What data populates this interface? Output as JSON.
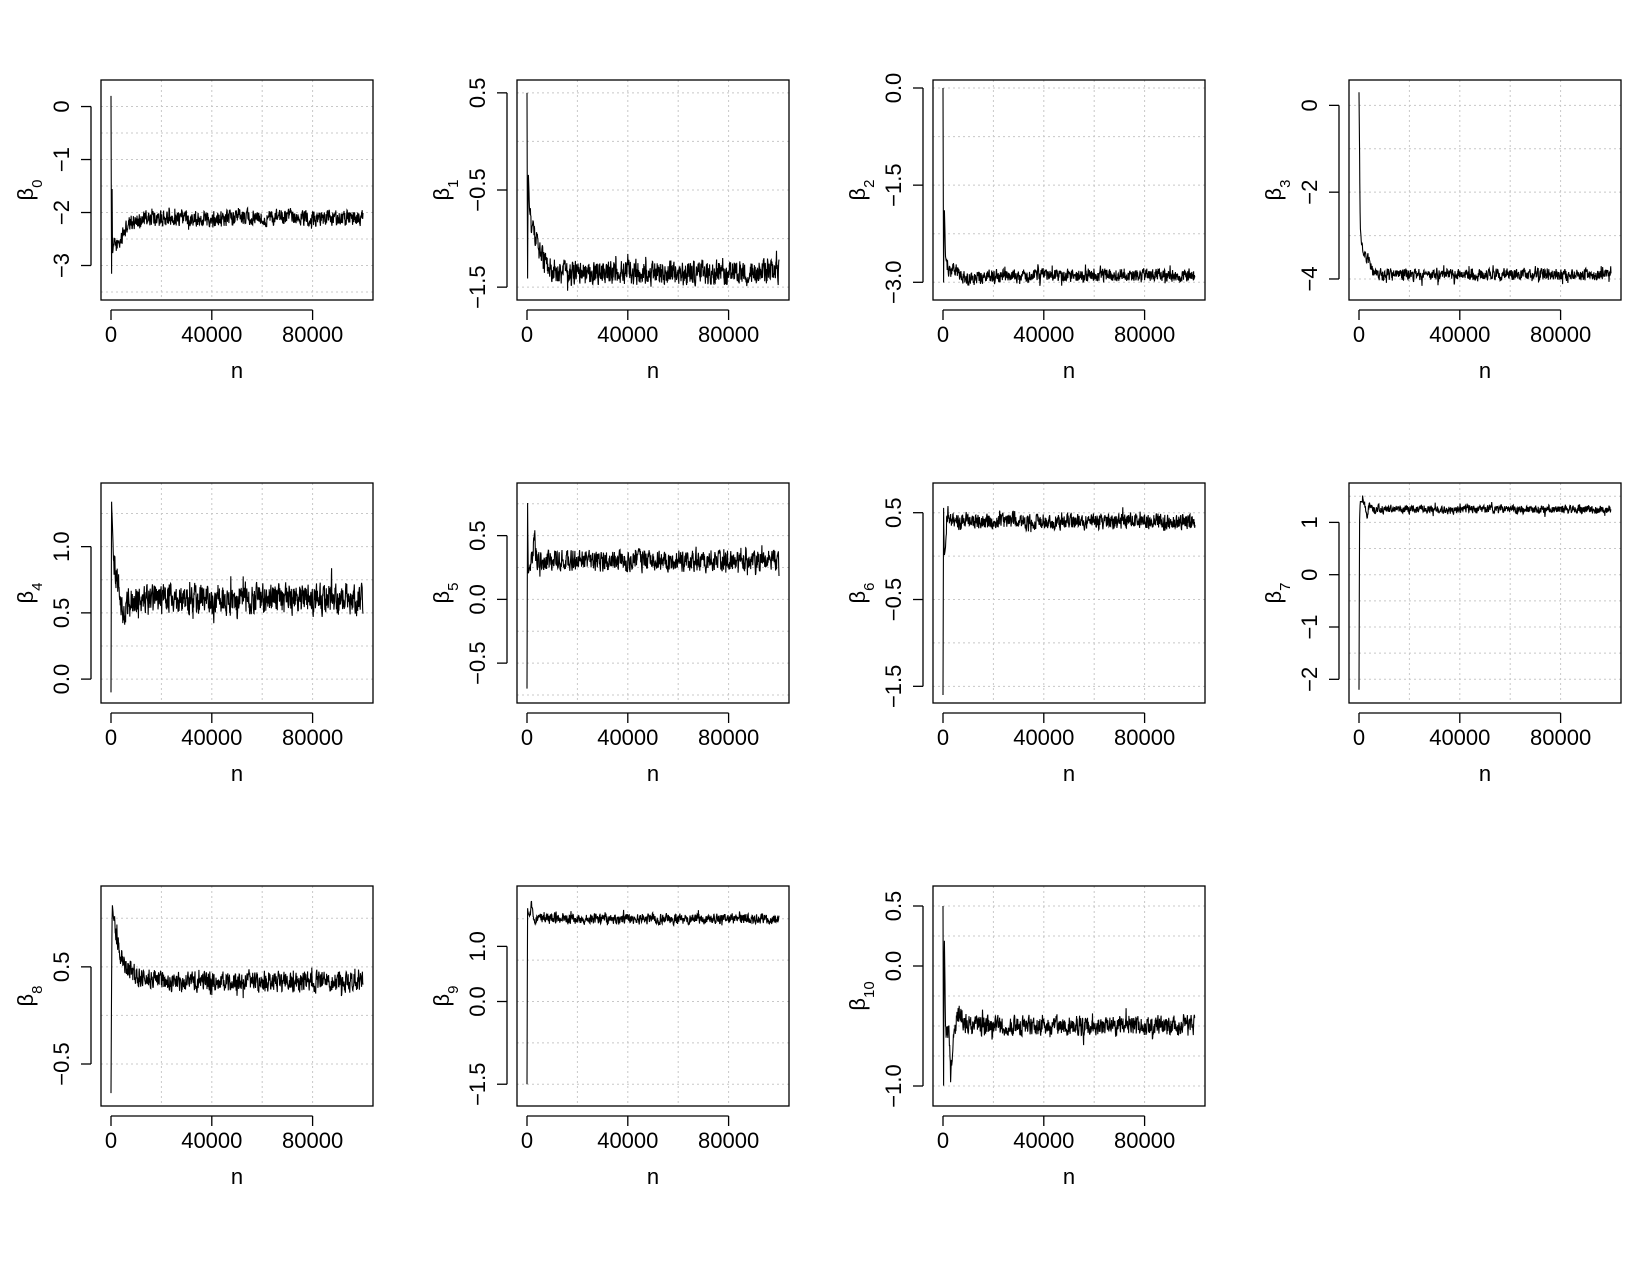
{
  "chart_data": [
    {
      "type": "line",
      "title": "",
      "xlabel": "n",
      "ylabel": "β",
      "ylabel_sub": "0",
      "xlim": [
        0,
        100000
      ],
      "ylim": [
        -3.5,
        0.35
      ],
      "xticks": [
        0,
        40000,
        80000
      ],
      "yticks": [
        0,
        -1,
        -2,
        -3
      ],
      "ytick_labels": [
        "0",
        "−1",
        "−2",
        "−3"
      ],
      "grid": true,
      "series": [
        {
          "x": [
            0,
            200,
            400,
            600,
            1000,
            1500,
            2000,
            3000,
            4000,
            5000,
            6000,
            7000,
            8000,
            10000,
            15000,
            20000,
            40000,
            60000,
            80000,
            100000
          ],
          "y": [
            0.2,
            -3.4,
            -1.2,
            -2.8,
            -2.6,
            -2.6,
            -2.6,
            -2.6,
            -2.5,
            -2.4,
            -2.3,
            -2.25,
            -2.2,
            -2.15,
            -2.12,
            -2.12,
            -2.1,
            -2.1,
            -2.1,
            -2.1
          ],
          "noise": 0.13
        }
      ]
    },
    {
      "type": "line",
      "title": "",
      "xlabel": "n",
      "ylabel": "β",
      "ylabel_sub": "1",
      "xlim": [
        0,
        100000
      ],
      "ylim": [
        -1.55,
        0.55
      ],
      "xticks": [
        0,
        40000,
        80000
      ],
      "yticks": [
        0.5,
        -0.5,
        -1.5
      ],
      "ytick_labels": [
        "0.5",
        "−0.5",
        "−1.5"
      ],
      "grid": true,
      "series": [
        {
          "x": [
            0,
            200,
            500,
            1000,
            2000,
            3000,
            4000,
            5000,
            6000,
            8000,
            10000,
            15000,
            20000,
            40000,
            60000,
            80000,
            100000
          ],
          "y": [
            0.5,
            -1.5,
            -0.3,
            -0.7,
            -0.95,
            -0.95,
            -1.0,
            -1.15,
            -1.2,
            -1.3,
            -1.33,
            -1.35,
            -1.35,
            -1.35,
            -1.35,
            -1.35,
            -1.35
          ],
          "noise": 0.11
        }
      ]
    },
    {
      "type": "line",
      "title": "",
      "xlabel": "n",
      "ylabel": "β",
      "ylabel_sub": "2",
      "xlim": [
        0,
        100000
      ],
      "ylim": [
        -3.15,
        0.0
      ],
      "xticks": [
        0,
        40000,
        80000
      ],
      "yticks": [
        0,
        -1.5,
        -3.0
      ],
      "ytick_labels": [
        "0.0",
        "−1.5",
        "−3.0"
      ],
      "grid": true,
      "series": [
        {
          "x": [
            0,
            200,
            500,
            1000,
            2000,
            3000,
            4000,
            6000,
            8000,
            10000,
            20000,
            40000,
            60000,
            80000,
            100000
          ],
          "y": [
            0.0,
            -3.1,
            -1.8,
            -2.6,
            -2.85,
            -2.85,
            -2.75,
            -2.85,
            -2.9,
            -2.95,
            -2.9,
            -2.9,
            -2.9,
            -2.9,
            -2.9
          ],
          "noise": 0.09
        }
      ]
    },
    {
      "type": "line",
      "title": "",
      "xlabel": "n",
      "ylabel": "β",
      "ylabel_sub": "3",
      "xlim": [
        0,
        100000
      ],
      "ylim": [
        -4.3,
        0.4
      ],
      "xticks": [
        0,
        40000,
        80000
      ],
      "yticks": [
        0,
        -2,
        -4
      ],
      "ytick_labels": [
        "0",
        "−2",
        "−4"
      ],
      "grid": true,
      "series": [
        {
          "x": [
            0,
            200,
            500,
            1000,
            2000,
            3000,
            4000,
            5000,
            6000,
            8000,
            10000,
            20000,
            40000,
            60000,
            80000,
            100000
          ],
          "y": [
            0.3,
            -1.0,
            -2.8,
            -3.2,
            -3.4,
            -3.5,
            -3.6,
            -3.8,
            -3.85,
            -3.9,
            -3.9,
            -3.9,
            -3.9,
            -3.9,
            -3.9,
            -3.9
          ],
          "noise": 0.12
        }
      ]
    },
    {
      "type": "line",
      "title": "",
      "xlabel": "n",
      "ylabel": "β",
      "ylabel_sub": "4",
      "xlim": [
        0,
        100000
      ],
      "ylim": [
        -0.12,
        1.42
      ],
      "xticks": [
        0,
        40000,
        80000
      ],
      "yticks": [
        0.0,
        0.5,
        1.0
      ],
      "ytick_labels": [
        "0.0",
        "0.5",
        "1.0"
      ],
      "grid": true,
      "series": [
        {
          "x": [
            0,
            200,
            500,
            1000,
            2000,
            3000,
            4000,
            5000,
            6000,
            8000,
            10000,
            20000,
            40000,
            60000,
            80000,
            100000
          ],
          "y": [
            -0.1,
            1.35,
            1.2,
            0.9,
            0.8,
            0.7,
            0.55,
            0.5,
            0.55,
            0.58,
            0.6,
            0.6,
            0.6,
            0.6,
            0.6,
            0.6
          ],
          "noise": 0.1
        }
      ]
    },
    {
      "type": "line",
      "title": "",
      "xlabel": "n",
      "ylabel": "β",
      "ylabel_sub": "5",
      "xlim": [
        0,
        100000
      ],
      "ylim": [
        -0.75,
        0.85
      ],
      "xticks": [
        0,
        40000,
        80000
      ],
      "yticks": [
        -0.5,
        0.0,
        0.5
      ],
      "ytick_labels": [
        "−0.5",
        "0.0",
        "0.5"
      ],
      "grid": true,
      "series": [
        {
          "x": [
            0,
            200,
            500,
            1000,
            2000,
            3000,
            4000,
            6000,
            10000,
            20000,
            40000,
            60000,
            80000,
            100000
          ],
          "y": [
            -0.7,
            0.8,
            0.2,
            0.25,
            0.3,
            0.45,
            0.3,
            0.3,
            0.3,
            0.3,
            0.3,
            0.3,
            0.3,
            0.3
          ],
          "noise": 0.07
        }
      ]
    },
    {
      "type": "line",
      "title": "",
      "xlabel": "n",
      "ylabel": "β",
      "ylabel_sub": "6",
      "xlim": [
        0,
        100000
      ],
      "ylim": [
        -1.6,
        0.75
      ],
      "xticks": [
        0,
        40000,
        80000
      ],
      "yticks": [
        0.5,
        -0.5,
        -1.5
      ],
      "ytick_labels": [
        "0.5",
        "−0.5",
        "−1.5"
      ],
      "grid": true,
      "series": [
        {
          "x": [
            0,
            200,
            500,
            1000,
            1500,
            2000,
            3000,
            5000,
            10000,
            20000,
            40000,
            60000,
            80000,
            100000
          ],
          "y": [
            -1.6,
            0.6,
            0.0,
            0.1,
            0.45,
            0.5,
            0.4,
            0.4,
            0.4,
            0.4,
            0.4,
            0.4,
            0.4,
            0.4
          ],
          "noise": 0.08
        }
      ]
    },
    {
      "type": "line",
      "title": "",
      "xlabel": "n",
      "ylabel": "β",
      "ylabel_sub": "7",
      "xlim": [
        0,
        100000
      ],
      "ylim": [
        -2.3,
        1.6
      ],
      "xticks": [
        0,
        40000,
        80000
      ],
      "yticks": [
        1,
        0,
        -1,
        -2
      ],
      "ytick_labels": [
        "1",
        "0",
        "−1",
        "−2"
      ],
      "grid": true,
      "series": [
        {
          "x": [
            0,
            200,
            500,
            1000,
            2000,
            3000,
            4000,
            6000,
            10000,
            20000,
            40000,
            60000,
            80000,
            100000
          ],
          "y": [
            -2.2,
            1.0,
            1.4,
            1.4,
            1.4,
            1.1,
            1.3,
            1.25,
            1.25,
            1.25,
            1.25,
            1.25,
            1.25,
            1.25
          ],
          "noise": 0.07
        }
      ]
    },
    {
      "type": "line",
      "title": "",
      "xlabel": "n",
      "ylabel": "β",
      "ylabel_sub": "8",
      "xlim": [
        0,
        100000
      ],
      "ylim": [
        -0.85,
        1.25
      ],
      "xticks": [
        0,
        40000,
        80000
      ],
      "yticks": [
        0.5,
        -0.5
      ],
      "ytick_labels": [
        "0.5",
        "−0.5"
      ],
      "grid": true,
      "series": [
        {
          "x": [
            0,
            200,
            500,
            1000,
            2000,
            3000,
            4000,
            6000,
            8000,
            10000,
            15000,
            20000,
            40000,
            60000,
            80000,
            100000
          ],
          "y": [
            -0.8,
            0.3,
            1.15,
            1.0,
            0.85,
            0.7,
            0.6,
            0.5,
            0.45,
            0.4,
            0.38,
            0.35,
            0.35,
            0.35,
            0.35,
            0.35
          ],
          "noise": 0.09
        }
      ]
    },
    {
      "type": "line",
      "title": "",
      "xlabel": "n",
      "ylabel": "β",
      "ylabel_sub": "9",
      "xlim": [
        0,
        100000
      ],
      "ylim": [
        -1.75,
        1.95
      ],
      "xticks": [
        0,
        40000,
        80000
      ],
      "yticks": [
        -1.5,
        0.0,
        1.0
      ],
      "ytick_labels": [
        "−1.5",
        "0.0",
        "1.0"
      ],
      "grid": true,
      "series": [
        {
          "x": [
            0,
            200,
            500,
            1000,
            2000,
            3000,
            4000,
            6000,
            10000,
            20000,
            40000,
            60000,
            80000,
            100000
          ],
          "y": [
            -1.5,
            1.7,
            1.6,
            1.55,
            1.75,
            1.45,
            1.5,
            1.5,
            1.5,
            1.5,
            1.5,
            1.5,
            1.5,
            1.5
          ],
          "noise": 0.08
        }
      ]
    },
    {
      "type": "line",
      "title": "",
      "xlabel": "n",
      "ylabel": "β",
      "ylabel_sub": "10",
      "xlim": [
        0,
        100000
      ],
      "ylim": [
        -1.1,
        0.6
      ],
      "xticks": [
        0,
        40000,
        80000
      ],
      "yticks": [
        0.5,
        0.0,
        -1.0
      ],
      "ytick_labels": [
        "0.5",
        "0.0",
        "−1.0"
      ],
      "grid": true,
      "series": [
        {
          "x": [
            0,
            200,
            500,
            1000,
            2000,
            2500,
            3000,
            4000,
            5000,
            6000,
            8000,
            10000,
            20000,
            40000,
            60000,
            80000,
            100000
          ],
          "y": [
            0.5,
            -1.1,
            0.3,
            -0.5,
            -0.55,
            -0.6,
            -0.95,
            -0.6,
            -0.5,
            -0.4,
            -0.45,
            -0.5,
            -0.5,
            -0.5,
            -0.5,
            -0.5,
            -0.5
          ],
          "noise": 0.07
        }
      ]
    }
  ]
}
